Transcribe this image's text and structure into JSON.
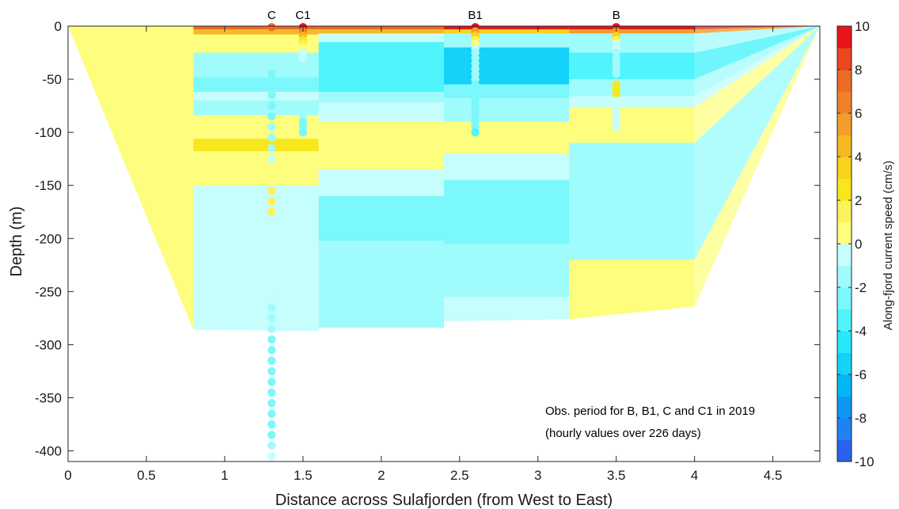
{
  "chart_data": {
    "type": "heatmap",
    "title": "",
    "xlabel": "Distance across Sulafjorden (from West to East)",
    "ylabel": "Depth (m)",
    "xlim": [
      0,
      4.8
    ],
    "ylim": [
      -410,
      0
    ],
    "xticks": [
      0,
      0.5,
      1,
      1.5,
      2,
      2.5,
      3,
      3.5,
      4,
      4.5
    ],
    "xtick_labels": [
      "0",
      "0.5",
      "1",
      "1.5",
      "2",
      "2.5",
      "3",
      "3.5",
      "4",
      "4.5"
    ],
    "yticks": [
      0,
      -50,
      -100,
      -150,
      -200,
      -250,
      -300,
      -350,
      -400
    ],
    "ytick_labels": [
      "0",
      "-50",
      "-100",
      "-150",
      "-200",
      "-250",
      "-300",
      "-350",
      "-400"
    ],
    "grid": false,
    "colorbar": {
      "label": "Along-fjord current speed (cm/s)",
      "range": [
        -10,
        10
      ],
      "levels": 20,
      "ticks": [
        10,
        8,
        6,
        4,
        2,
        0,
        -2,
        -4,
        -6,
        -8,
        -10
      ],
      "tick_labels": [
        "10",
        "8",
        "6",
        "4",
        "2",
        "0",
        "-2",
        "-4",
        "-6",
        "-8",
        "-10"
      ],
      "colors": [
        "#2a62ef",
        "#1f82f2",
        "#0d98f5",
        "#00b6f5",
        "#14d2f8",
        "#27e8fb",
        "#4ff4fc",
        "#7bf8fc",
        "#a0fbfc",
        "#c6fdfd",
        "#fdfd7e",
        "#faf45a",
        "#f8e71c",
        "#f7d31c",
        "#f5b924",
        "#f39d2a",
        "#f0812b",
        "#ee6a27",
        "#eb4721",
        "#e8141a"
      ]
    },
    "cross_section": {
      "bottom_profile": [
        {
          "x": 0,
          "depth": 0
        },
        {
          "x": 0.8,
          "depth": -286
        },
        {
          "x": 1.6,
          "depth": -287
        },
        {
          "x": 2.4,
          "depth": -284
        },
        {
          "x": 3.2,
          "depth": -276
        },
        {
          "x": 4.0,
          "depth": -264
        },
        {
          "x": 4.8,
          "depth": 0
        }
      ],
      "columns": [
        {
          "x0": 0.8,
          "x1": 1.6,
          "layers": [
            {
              "top": 0,
              "bottom": -3,
              "value": 7
            },
            {
              "top": -3,
              "bottom": -8,
              "value": 4
            },
            {
              "top": -8,
              "bottom": -25,
              "value": 0.5
            },
            {
              "top": -25,
              "bottom": -48,
              "value": -1.5
            },
            {
              "top": -48,
              "bottom": -62,
              "value": -2.5
            },
            {
              "top": -62,
              "bottom": -70,
              "value": -0.5
            },
            {
              "top": -70,
              "bottom": -84,
              "value": -1.5
            },
            {
              "top": -84,
              "bottom": -106,
              "value": 0.5
            },
            {
              "top": -106,
              "bottom": -118,
              "value": 2.5
            },
            {
              "top": -118,
              "bottom": -150,
              "value": 0.5
            },
            {
              "top": -150,
              "bottom": -287,
              "value": -0.5
            }
          ]
        },
        {
          "x0": 1.6,
          "x1": 2.4,
          "layers": [
            {
              "top": 0,
              "bottom": -3,
              "value": 7
            },
            {
              "top": -3,
              "bottom": -7,
              "value": 4
            },
            {
              "top": -7,
              "bottom": -15,
              "value": -0.5
            },
            {
              "top": -15,
              "bottom": -62,
              "value": -3.5
            },
            {
              "top": -62,
              "bottom": -72,
              "value": -1.5
            },
            {
              "top": -72,
              "bottom": -90,
              "value": -0.5
            },
            {
              "top": -90,
              "bottom": -135,
              "value": 0.5
            },
            {
              "top": -135,
              "bottom": -160,
              "value": -0.5
            },
            {
              "top": -160,
              "bottom": -202,
              "value": -2.5
            },
            {
              "top": -202,
              "bottom": -284,
              "value": -1.5
            }
          ]
        },
        {
          "x0": 2.4,
          "x1": 3.2,
          "layers": [
            {
              "top": 0,
              "bottom": -3,
              "value": 9
            },
            {
              "top": -3,
              "bottom": -7,
              "value": 3
            },
            {
              "top": -7,
              "bottom": -20,
              "value": -1.5
            },
            {
              "top": -20,
              "bottom": -55,
              "value": -5.5
            },
            {
              "top": -55,
              "bottom": -68,
              "value": -2.5
            },
            {
              "top": -68,
              "bottom": -90,
              "value": -1.5
            },
            {
              "top": -90,
              "bottom": -120,
              "value": 0.5
            },
            {
              "top": -120,
              "bottom": -145,
              "value": -0.5
            },
            {
              "top": -145,
              "bottom": -205,
              "value": -2.5
            },
            {
              "top": -205,
              "bottom": -255,
              "value": -1.5
            },
            {
              "top": -255,
              "bottom": -278,
              "value": -0.5
            }
          ]
        },
        {
          "x0": 3.2,
          "x1": 4.0,
          "layers": [
            {
              "top": 0,
              "bottom": -3,
              "value": 9
            },
            {
              "top": -3,
              "bottom": -7,
              "value": 5
            },
            {
              "top": -7,
              "bottom": -25,
              "value": -1.5
            },
            {
              "top": -25,
              "bottom": -50,
              "value": -3.5
            },
            {
              "top": -50,
              "bottom": -66,
              "value": -1.5
            },
            {
              "top": -66,
              "bottom": -76,
              "value": -0.5
            },
            {
              "top": -76,
              "bottom": -110,
              "value": 0.5
            },
            {
              "top": -110,
              "bottom": -220,
              "value": -1.5
            },
            {
              "top": -220,
              "bottom": -276,
              "value": 0.5
            }
          ]
        }
      ]
    },
    "stations": [
      {
        "name": "C",
        "x": 1.3,
        "points": [
          {
            "depth": -1,
            "value": 7
          },
          {
            "depth": -35,
            "value": -1.5
          },
          {
            "depth": -45,
            "value": -2.5
          },
          {
            "depth": -55,
            "value": -2.5
          },
          {
            "depth": -65,
            "value": -2.5
          },
          {
            "depth": -75,
            "value": -2.5
          },
          {
            "depth": -85,
            "value": -2.5
          },
          {
            "depth": -95,
            "value": -1.5
          },
          {
            "depth": -105,
            "value": -1.5
          },
          {
            "depth": -115,
            "value": -1.5
          },
          {
            "depth": -125,
            "value": -0.5
          },
          {
            "depth": -155,
            "value": 1.5
          },
          {
            "depth": -165,
            "value": 1.5
          },
          {
            "depth": -175,
            "value": 1.5
          },
          {
            "depth": -255,
            "value": -0.5
          },
          {
            "depth": -265,
            "value": -1.5
          },
          {
            "depth": -275,
            "value": -1.5
          },
          {
            "depth": -285,
            "value": -1.5
          },
          {
            "depth": -295,
            "value": -2.5
          },
          {
            "depth": -305,
            "value": -2.5
          },
          {
            "depth": -315,
            "value": -2.5
          },
          {
            "depth": -325,
            "value": -2.5
          },
          {
            "depth": -335,
            "value": -2.5
          },
          {
            "depth": -345,
            "value": -2.5
          },
          {
            "depth": -355,
            "value": -2.5
          },
          {
            "depth": -365,
            "value": -2.5
          },
          {
            "depth": -375,
            "value": -2.5
          },
          {
            "depth": -385,
            "value": -2.5
          },
          {
            "depth": -395,
            "value": -1.5
          },
          {
            "depth": -405,
            "value": -0.5
          }
        ]
      },
      {
        "name": "C1",
        "x": 1.5,
        "points": [
          {
            "depth": -1,
            "value": 9
          },
          {
            "depth": -5,
            "value": 6
          },
          {
            "depth": -9,
            "value": 4
          },
          {
            "depth": -13,
            "value": 2.5
          },
          {
            "depth": -17,
            "value": 1.5
          },
          {
            "depth": -21,
            "value": 0.5
          },
          {
            "depth": -25,
            "value": -0.5
          },
          {
            "depth": -30,
            "value": -0.5
          },
          {
            "depth": -80,
            "value": -1.5
          },
          {
            "depth": -85,
            "value": -1.5
          },
          {
            "depth": -90,
            "value": -2.5
          },
          {
            "depth": -95,
            "value": -2.5
          },
          {
            "depth": -100,
            "value": -2.5
          }
        ]
      },
      {
        "name": "B1",
        "x": 2.6,
        "points": [
          {
            "depth": -1,
            "value": 9
          },
          {
            "depth": -5,
            "value": 5
          },
          {
            "depth": -9,
            "value": 3
          },
          {
            "depth": -13,
            "value": 1.5
          },
          {
            "depth": -17,
            "value": 0.5
          },
          {
            "depth": -21,
            "value": -0.5
          },
          {
            "depth": -25,
            "value": -1.5
          },
          {
            "depth": -30,
            "value": -1.5
          },
          {
            "depth": -35,
            "value": -1.5
          },
          {
            "depth": -40,
            "value": -1.5
          },
          {
            "depth": -45,
            "value": -1.5
          },
          {
            "depth": -50,
            "value": -1.5
          },
          {
            "depth": -55,
            "value": -2.5
          },
          {
            "depth": -60,
            "value": -2.5
          },
          {
            "depth": -65,
            "value": -2.5
          },
          {
            "depth": -70,
            "value": -2.5
          },
          {
            "depth": -75,
            "value": -2.5
          },
          {
            "depth": -80,
            "value": -2.5
          },
          {
            "depth": -85,
            "value": -2.5
          },
          {
            "depth": -90,
            "value": -2.5
          },
          {
            "depth": -95,
            "value": -2.5
          },
          {
            "depth": -100,
            "value": -3.5
          }
        ]
      },
      {
        "name": "B",
        "x": 3.5,
        "points": [
          {
            "depth": -1,
            "value": 9
          },
          {
            "depth": -5,
            "value": 5
          },
          {
            "depth": -9,
            "value": 3
          },
          {
            "depth": -13,
            "value": 1.5
          },
          {
            "depth": -17,
            "value": -0.5
          },
          {
            "depth": -21,
            "value": -0.5
          },
          {
            "depth": -25,
            "value": -1.5
          },
          {
            "depth": -30,
            "value": -1.5
          },
          {
            "depth": -35,
            "value": -1.5
          },
          {
            "depth": -40,
            "value": -1.5
          },
          {
            "depth": -45,
            "value": -1.5
          },
          {
            "depth": -55,
            "value": 2.5
          },
          {
            "depth": -60,
            "value": 2.5
          },
          {
            "depth": -65,
            "value": 2.5
          },
          {
            "depth": -70,
            "value": -0.5
          },
          {
            "depth": -75,
            "value": -0.5
          },
          {
            "depth": -80,
            "value": -0.5
          },
          {
            "depth": -85,
            "value": -0.5
          },
          {
            "depth": -90,
            "value": -0.5
          },
          {
            "depth": -95,
            "value": -0.5
          }
        ]
      }
    ],
    "annotations": [
      "Obs. period for B, B1, C and C1 in 2019",
      "(hourly values over 226 days)"
    ]
  }
}
